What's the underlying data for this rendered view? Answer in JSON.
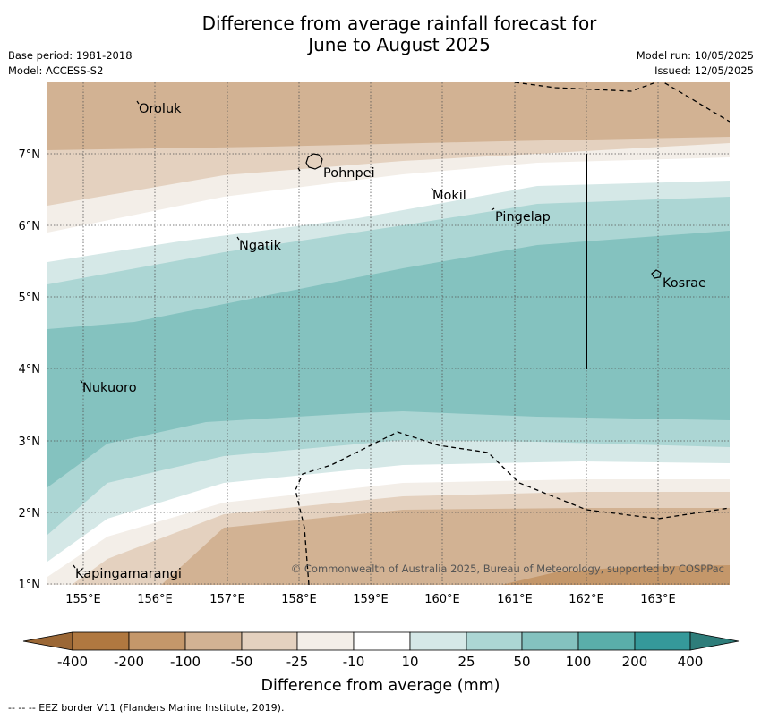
{
  "title": {
    "line1": "Difference from average rainfall forecast for",
    "line2": "June to August 2025"
  },
  "meta": {
    "base_period": "Base period: 1981-2018",
    "model": "Model: ACCESS-S2",
    "model_run": "Model run: 10/05/2025",
    "issued": "Issued: 12/05/2025"
  },
  "map": {
    "longitude_labels": [
      "155°E",
      "156°E",
      "157°E",
      "158°E",
      "159°E",
      "160°E",
      "161°E",
      "162°E",
      "163°E"
    ],
    "latitude_labels": [
      "7°N",
      "6°N",
      "5°N",
      "4°N",
      "3°N",
      "2°N",
      "1°N"
    ],
    "places": [
      {
        "name": "Oroluk"
      },
      {
        "name": "Pohnpei"
      },
      {
        "name": "Mokil"
      },
      {
        "name": "Pingelap"
      },
      {
        "name": "Ngatik"
      },
      {
        "name": "Kosrae"
      },
      {
        "name": "Nukuoro"
      },
      {
        "name": "Kapingamarangi"
      }
    ],
    "copyright": "© Commonwealth of Australia 2025, Bureau of Meteorology, supported by COSPPac"
  },
  "legend": {
    "title": "Difference from average (mm)",
    "ticks": [
      "-400",
      "-200",
      "-100",
      "-50",
      "-25",
      "-10",
      "10",
      "25",
      "50",
      "100",
      "200",
      "400"
    ],
    "colors": {
      "lt_-400": "#9b6735",
      "-400_-200": "#b07840",
      "-200_-100": "#c4976a",
      "-100_-50": "#d2b293",
      "-50_-25": "#e4d1bf",
      "-25_-10": "#f3eee8",
      "-10_10": "#ffffff",
      "10_25": "#d5e8e7",
      "25_50": "#acd6d4",
      "50_100": "#84c2bf",
      "100_200": "#5aaeaa",
      "200_400": "#35999a",
      "gt_400": "#2e7d7a"
    }
  },
  "footnote": "--  --  -- EEZ border V11 (Flanders Marine Institute, 2019)."
}
